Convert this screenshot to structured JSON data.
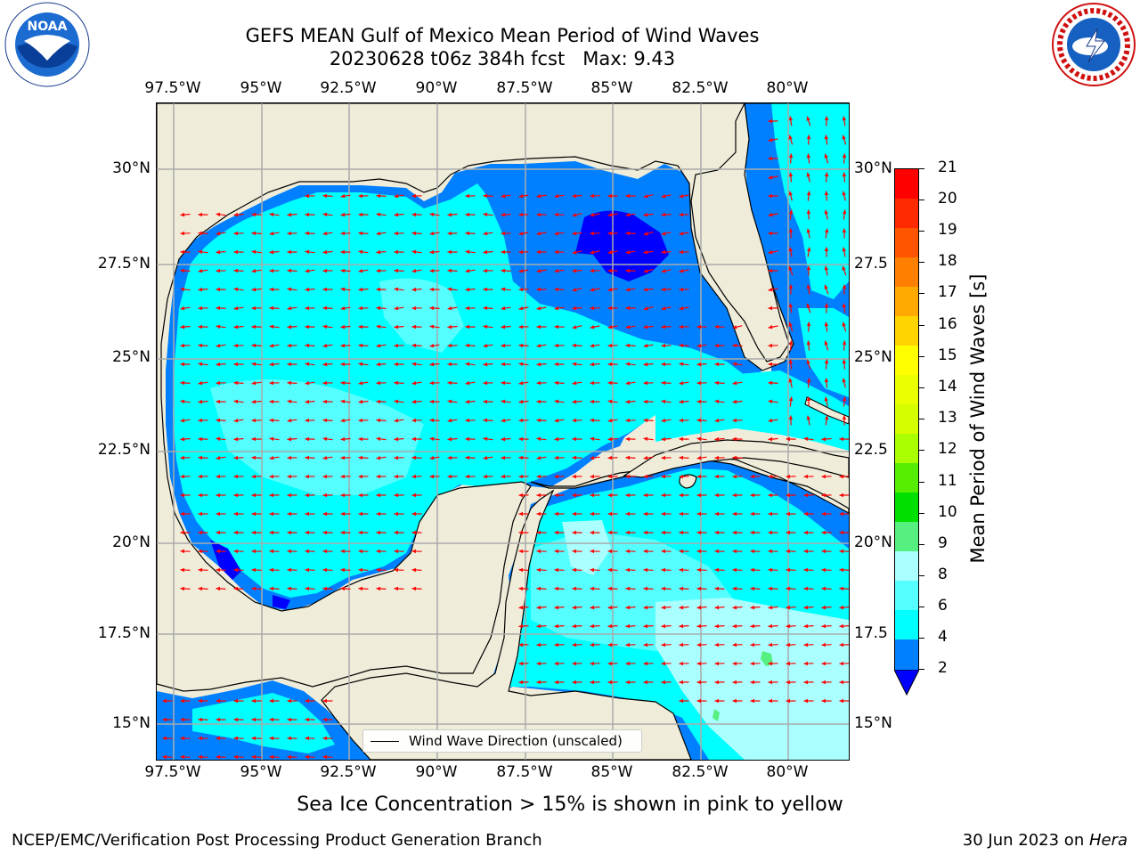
{
  "header": {
    "title_line1": "GEFS MEAN Gulf of Mexico Mean Period of Wind Waves",
    "title_line2": "20230628 t06z 384h fcst   Max: 9.43"
  },
  "logos": {
    "noaa": {
      "badge": "NOAA",
      "ring_text": "NATIONAL OCEANIC AND ATMOSPHERIC ADMINISTRATION · U.S. DEPARTMENT OF COMMERCE"
    },
    "nws": {
      "ring_text": "NATIONAL WEATHER SERVICE"
    }
  },
  "axes": {
    "x_ticks": [
      "97.5°W",
      "95°W",
      "92.5°W",
      "90°W",
      "87.5°W",
      "85°W",
      "82.5°W",
      "80°W"
    ],
    "y_ticks_left": [
      "30°N",
      "27.5°N",
      "25°N",
      "22.5°N",
      "20°N",
      "17.5°N",
      "15°N"
    ],
    "y_ticks_right": [
      "30°N",
      "27.5",
      "25°N",
      "22.5",
      "20°N",
      "17.5",
      "15°N"
    ]
  },
  "legend": {
    "label": "Wind Wave Direction (unscaled)"
  },
  "colorbar": {
    "label": "Mean Period of Wind Waves [s]",
    "ticks": [
      "21",
      "20",
      "19",
      "18",
      "17",
      "16",
      "15",
      "14",
      "13",
      "12",
      "11",
      "10",
      "9",
      "8",
      "6",
      "4",
      "2"
    ],
    "colors": [
      "#ff0000",
      "#ff2a00",
      "#ff5500",
      "#ff7f00",
      "#ffaa00",
      "#ffd400",
      "#ffff00",
      "#eaff00",
      "#d5ff00",
      "#aaff00",
      "#55ee00",
      "#00e000",
      "#55f080",
      "#aaffff",
      "#55ffff",
      "#00ffff",
      "#0080ff",
      "#0000ff"
    ],
    "extend_color": "#0000ff"
  },
  "map_colors": {
    "land": "#efedd9",
    "water_shallow": "#0080ff",
    "water_deep": "#0000ff",
    "cyan": "#00ffff",
    "light_cyan": "#55ffff",
    "pale_cyan": "#aaffff",
    "arrow": "#ff0000",
    "grid": "#aaaaaa"
  },
  "footer": {
    "subtitle": "Sea Ice Concentration > 15% is shown in pink to yellow",
    "branch": "NCEP/EMC/Verification Post Processing Product Generation Branch",
    "date": "30 Jun 2023 on ",
    "machine": "Hera"
  }
}
